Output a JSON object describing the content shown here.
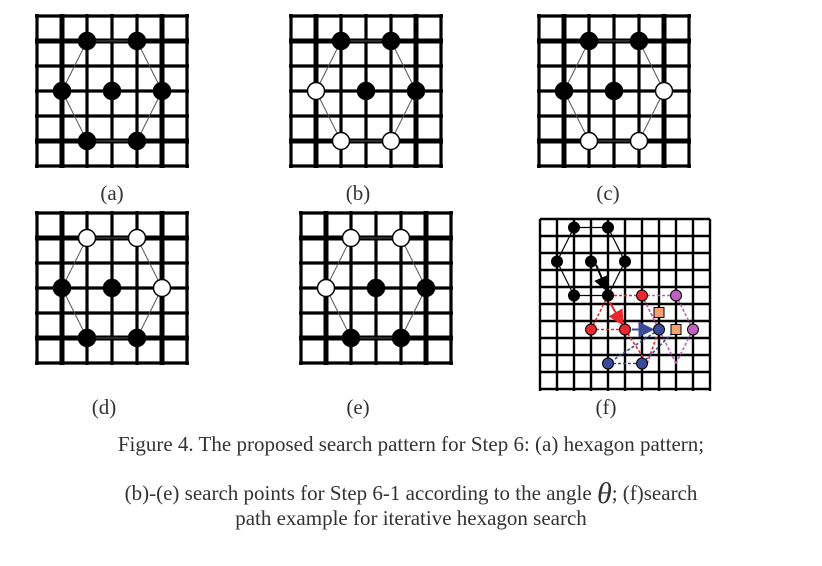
{
  "panels": [
    {
      "label": "(a)"
    },
    {
      "label": "(b)"
    },
    {
      "label": "(c)"
    },
    {
      "label": "(d)"
    },
    {
      "label": "(e)"
    },
    {
      "label": "(f)"
    }
  ],
  "caption": {
    "line1": "Figure 4.    The proposed search pattern for Step 6: (a) hexagon pattern;",
    "line2_before": "(b)-(e) search points for Step 6-1 according to the angle ",
    "symbol": "θ",
    "line2_after": "; (f)search",
    "line3": "path example for iterative hexagon search"
  },
  "colors": {
    "grid": "#000000",
    "searched_point": "#000000",
    "new_point": "#ffffff",
    "path_red": "#e8282c",
    "path_pink": "#c060c0",
    "path_blue": "#3a4a9a",
    "center_square": "#f4a070"
  }
}
